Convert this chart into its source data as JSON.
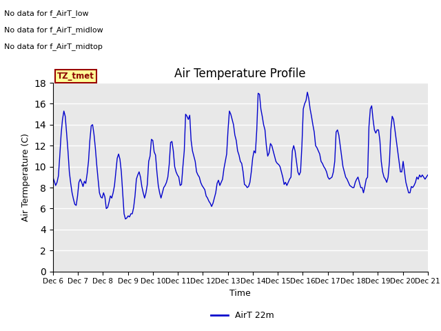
{
  "title": "Air Temperature Profile",
  "xlabel": "Time",
  "ylabel": "Air Termperature (C)",
  "ylim": [
    0,
    18
  ],
  "yticks": [
    0,
    2,
    4,
    6,
    8,
    10,
    12,
    14,
    16,
    18
  ],
  "line_color": "#0000CC",
  "legend_label": "AirT 22m",
  "legend_line_color": "#0000CC",
  "no_data_texts": [
    "No data for f_AirT_low",
    "No data for f_AirT_midlow",
    "No data for f_AirT_midtop"
  ],
  "tz_label": "TZ_tmet",
  "background_color": "#ffffff",
  "plot_bg_color": "#E8E8E8",
  "grid_color": "#ffffff",
  "figsize": [
    6.4,
    4.8
  ],
  "dpi": 100,
  "temperatures": [
    9.0,
    8.6,
    8.2,
    8.5,
    9.1,
    11.0,
    13.1,
    14.5,
    15.3,
    14.8,
    13.2,
    11.5,
    9.5,
    8.4,
    7.5,
    6.9,
    6.4,
    6.3,
    7.2,
    8.5,
    8.8,
    8.5,
    8.1,
    8.6,
    8.4,
    9.3,
    10.5,
    12.5,
    13.9,
    14.0,
    13.1,
    11.8,
    10.2,
    8.8,
    7.5,
    7.1,
    7.0,
    7.5,
    7.1,
    6.0,
    6.1,
    6.6,
    7.2,
    7.0,
    7.5,
    8.2,
    9.5,
    10.8,
    11.2,
    10.7,
    9.5,
    7.5,
    5.5,
    5.0,
    5.1,
    5.3,
    5.2,
    5.5,
    5.5,
    6.1,
    7.2,
    8.8,
    9.2,
    9.5,
    9.0,
    8.1,
    7.5,
    7.0,
    7.5,
    8.3,
    10.5,
    11.0,
    12.6,
    12.5,
    11.4,
    11.1,
    9.5,
    8.2,
    7.5,
    7.0,
    7.5,
    8.0,
    8.2,
    8.5,
    9.0,
    10.2,
    12.3,
    12.4,
    11.5,
    10.0,
    9.5,
    9.2,
    9.0,
    8.2,
    8.3,
    10.0,
    11.5,
    15.0,
    14.8,
    14.5,
    14.9,
    12.5,
    11.5,
    11.0,
    10.5,
    9.5,
    9.2,
    9.0,
    8.5,
    8.2,
    8.0,
    7.8,
    7.2,
    7.0,
    6.7,
    6.5,
    6.2,
    6.5,
    7.0,
    7.5,
    8.4,
    8.7,
    8.2,
    8.5,
    8.8,
    9.8,
    10.5,
    11.2,
    13.5,
    15.3,
    15.0,
    14.5,
    14.0,
    13.0,
    12.5,
    11.5,
    11.1,
    10.5,
    10.3,
    9.5,
    8.3,
    8.2,
    8.0,
    8.1,
    8.5,
    9.5,
    10.8,
    11.5,
    11.3,
    13.5,
    17.0,
    16.9,
    15.5,
    14.8,
    14.0,
    13.5,
    12.0,
    11.0,
    11.3,
    12.2,
    12.0,
    11.5,
    11.0,
    10.5,
    10.3,
    10.2,
    10.0,
    9.5,
    9.0,
    8.3,
    8.5,
    8.2,
    8.5,
    8.8,
    9.0,
    11.5,
    12.0,
    11.5,
    10.5,
    9.5,
    9.2,
    9.5,
    12.0,
    15.5,
    16.0,
    16.3,
    17.1,
    16.5,
    15.5,
    14.8,
    14.0,
    13.3,
    12.0,
    11.8,
    11.5,
    11.2,
    10.5,
    10.3,
    10.0,
    9.8,
    9.5,
    9.0,
    8.8,
    8.9,
    9.0,
    9.5,
    10.5,
    13.3,
    13.5,
    13.0,
    12.0,
    11.0,
    10.0,
    9.5,
    9.0,
    8.8,
    8.5,
    8.2,
    8.1,
    8.0,
    8.0,
    8.5,
    8.8,
    9.0,
    8.5,
    8.0,
    8.0,
    7.5,
    8.1,
    8.8,
    9.0,
    13.8,
    15.5,
    15.8,
    14.5,
    13.5,
    13.2,
    13.5,
    13.5,
    12.5,
    10.5,
    9.5,
    9.0,
    8.8,
    8.5,
    9.0,
    10.5,
    13.5,
    14.8,
    14.5,
    13.5,
    12.5,
    11.5,
    10.5,
    9.5,
    9.5,
    10.5,
    9.5,
    8.5,
    8.0,
    7.5,
    7.5,
    8.1,
    8.0,
    8.2,
    8.5,
    9.0,
    8.8,
    9.2,
    9.0,
    9.2,
    9.0,
    8.8,
    9.0,
    9.2
  ]
}
